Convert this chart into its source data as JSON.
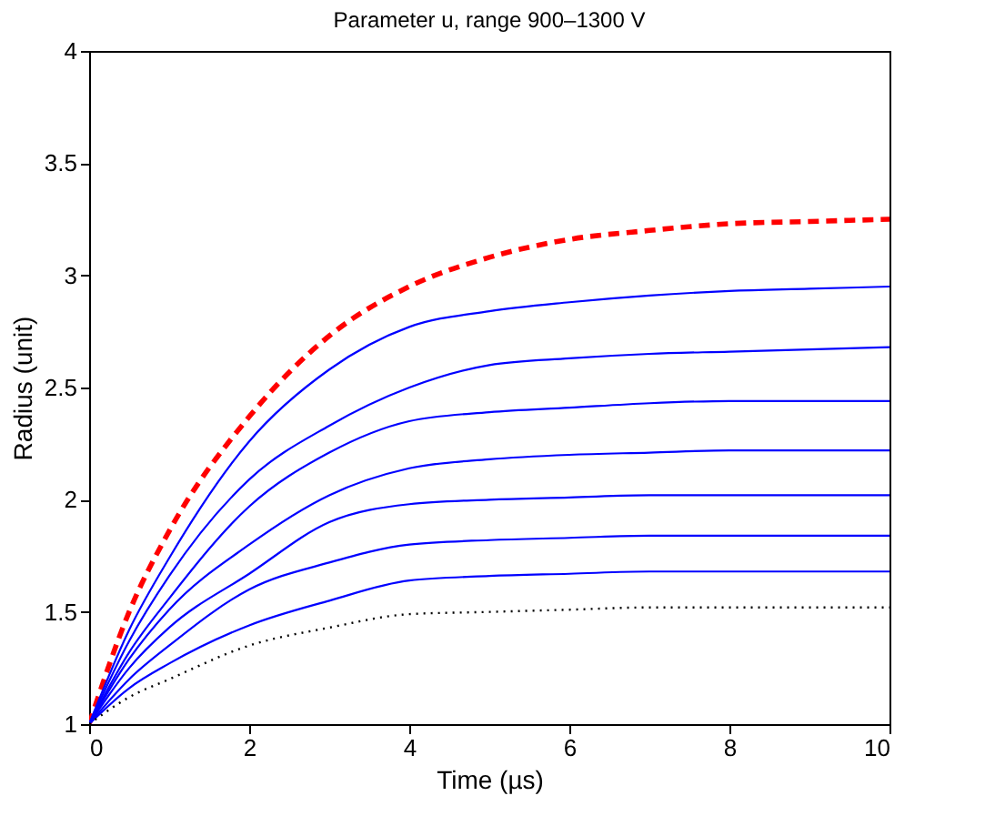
{
  "chart_data": {
    "type": "line",
    "title": "Parameter u, range 900–1300 V",
    "xlabel": "Time (µs)",
    "ylabel": "Radius (unit)",
    "x": [
      0,
      0.5,
      1,
      2,
      3,
      4,
      5,
      6,
      7,
      8,
      9,
      10
    ],
    "series": [
      {
        "color": "#ff0000",
        "line_style": "dashed",
        "values": [
          1,
          1.5,
          1.86,
          2.37,
          2.73,
          2.95,
          3.08,
          3.16,
          3.2,
          3.23,
          3.24,
          3.25
        ]
      },
      {
        "color": "#0000ff",
        "line_style": "solid",
        "values": [
          1,
          1.42,
          1.74,
          2.26,
          2.58,
          2.77,
          2.84,
          2.88,
          2.91,
          2.93,
          2.94,
          2.95
        ]
      },
      {
        "color": "#0000ff",
        "line_style": "solid",
        "values": [
          1,
          1.37,
          1.66,
          2.09,
          2.33,
          2.5,
          2.6,
          2.63,
          2.65,
          2.66,
          2.67,
          2.68
        ]
      },
      {
        "color": "#0000ff",
        "line_style": "solid",
        "values": [
          1,
          1.32,
          1.56,
          1.97,
          2.21,
          2.35,
          2.39,
          2.41,
          2.43,
          2.44,
          2.44,
          2.44
        ]
      },
      {
        "color": "#0000ff",
        "line_style": "solid",
        "values": [
          1,
          1.29,
          1.51,
          1.8,
          2.02,
          2.14,
          2.18,
          2.2,
          2.21,
          2.22,
          2.22,
          2.22
        ]
      },
      {
        "color": "#0000ff",
        "line_style": "solid",
        "values": [
          1,
          1.25,
          1.43,
          1.67,
          1.9,
          1.98,
          2.0,
          2.01,
          2.02,
          2.02,
          2.02,
          2.02
        ]
      },
      {
        "color": "#0000ff",
        "line_style": "solid",
        "values": [
          1,
          1.2,
          1.35,
          1.6,
          1.72,
          1.8,
          1.82,
          1.83,
          1.84,
          1.84,
          1.84,
          1.84
        ]
      },
      {
        "color": "#0000ff",
        "line_style": "solid",
        "values": [
          1,
          1.16,
          1.27,
          1.44,
          1.55,
          1.64,
          1.66,
          1.67,
          1.68,
          1.68,
          1.68,
          1.68
        ]
      },
      {
        "color": "#000000",
        "line_style": "dotted",
        "values": [
          1,
          1.12,
          1.2,
          1.35,
          1.43,
          1.49,
          1.5,
          1.51,
          1.52,
          1.52,
          1.52,
          1.52
        ]
      }
    ],
    "xlim": [
      0,
      10
    ],
    "xticks": [
      0,
      2,
      4,
      6,
      8,
      10
    ],
    "ylim": [
      1,
      4
    ],
    "yticks": [
      1,
      1.5,
      2,
      2.5,
      3,
      3.5,
      4
    ],
    "grid": false
  }
}
